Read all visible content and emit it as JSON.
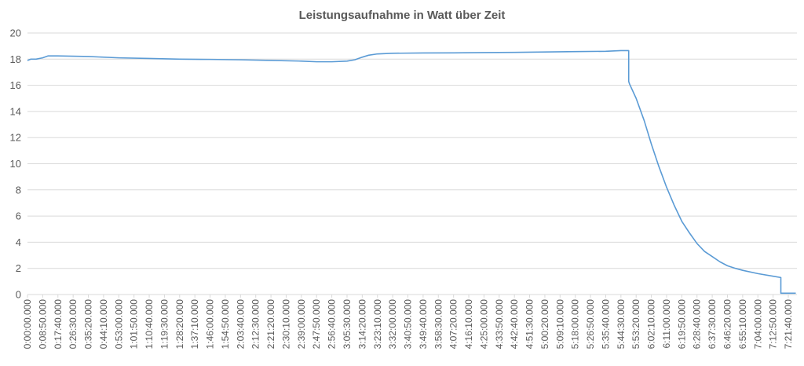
{
  "chart_data": {
    "type": "line",
    "title": "Leistungsaufnahme in Watt über Zeit",
    "xlabel": "",
    "ylabel": "",
    "ylim": [
      0,
      20
    ],
    "yticks": [
      0,
      2,
      4,
      6,
      8,
      10,
      12,
      14,
      16,
      18,
      20
    ],
    "grid": true,
    "legend": "none",
    "color": "#5b9bd5",
    "x_unit": "h:mm:ss.000",
    "xticks": [
      "0:00:00.000",
      "0:08:50.000",
      "0:17:40.000",
      "0:26:30.000",
      "0:35:20.000",
      "0:44:10.000",
      "0:53:00.000",
      "1:01:50.000",
      "1:10:40.000",
      "1:19:30.000",
      "1:28:20.000",
      "1:37:10.000",
      "1:46:00.000",
      "1:54:50.000",
      "2:03:40.000",
      "2:12:30.000",
      "2:21:20.000",
      "2:30:10.000",
      "2:39:00.000",
      "2:47:50.000",
      "2:56:40.000",
      "3:05:30.000",
      "3:14:20.000",
      "3:23:10.000",
      "3:32:00.000",
      "3:40:50.000",
      "3:49:40.000",
      "3:58:30.000",
      "4:07:20.000",
      "4:16:10.000",
      "4:25:00.000",
      "4:33:50.000",
      "4:42:40.000",
      "4:51:30.000",
      "5:00:20.000",
      "5:09:10.000",
      "5:18:00.000",
      "5:26:50.000",
      "5:35:40.000",
      "5:44:30.000",
      "5:53:20.000",
      "6:02:10.000",
      "6:11:00.000",
      "6:19:50.000",
      "6:28:40.000",
      "6:37:30.000",
      "6:46:20.000",
      "6:55:10.000",
      "7:04:00.000",
      "7:12:50.000",
      "7:21:40.000"
    ],
    "series": [
      {
        "x": [
          "0:00:00.000",
          "0:02:00.000",
          "0:05:00.000",
          "0:08:50.000",
          "0:12:00.000",
          "0:17:40.000",
          "0:35:20.000",
          "0:53:00.000",
          "1:10:40.000",
          "1:28:20.000",
          "1:46:00.000",
          "2:03:40.000",
          "2:21:20.000",
          "2:39:00.000",
          "2:47:50.000",
          "2:56:40.000",
          "3:05:30.000",
          "3:10:00.000",
          "3:14:20.000",
          "3:18:00.000",
          "3:23:10.000",
          "3:32:00.000",
          "3:49:40.000",
          "4:07:20.000",
          "4:25:00.000",
          "4:42:40.000",
          "5:00:20.000",
          "5:18:00.000",
          "5:35:40.000",
          "5:44:30.000",
          "5:49:00.000",
          "5:49:00.001",
          "5:49:30.000",
          "5:53:20.000",
          "5:58:00.000",
          "6:02:10.000",
          "6:06:30.000",
          "6:11:00.000",
          "6:15:30.000",
          "6:19:50.000",
          "6:24:20.000",
          "6:28:40.000",
          "6:33:00.000",
          "6:37:30.000",
          "6:42:00.000",
          "6:46:20.000",
          "6:51:00.000",
          "6:55:10.000",
          "7:04:00.000",
          "7:12:50.000",
          "7:17:20.000",
          "7:17:20.001",
          "7:21:40.000",
          "7:26:00.000"
        ],
        "y": [
          17.9,
          18.0,
          18.0,
          18.1,
          18.25,
          18.25,
          18.2,
          18.1,
          18.05,
          18.0,
          17.98,
          17.95,
          17.9,
          17.85,
          17.8,
          17.8,
          17.85,
          17.95,
          18.15,
          18.3,
          18.4,
          18.45,
          18.47,
          18.48,
          18.5,
          18.52,
          18.55,
          18.58,
          18.6,
          18.65,
          18.65,
          16.3,
          16.1,
          15.0,
          13.3,
          11.5,
          9.8,
          8.2,
          6.8,
          5.6,
          4.7,
          3.9,
          3.3,
          2.9,
          2.5,
          2.2,
          2.0,
          1.85,
          1.6,
          1.4,
          1.3,
          0.1,
          0.1,
          0.1
        ]
      }
    ]
  }
}
